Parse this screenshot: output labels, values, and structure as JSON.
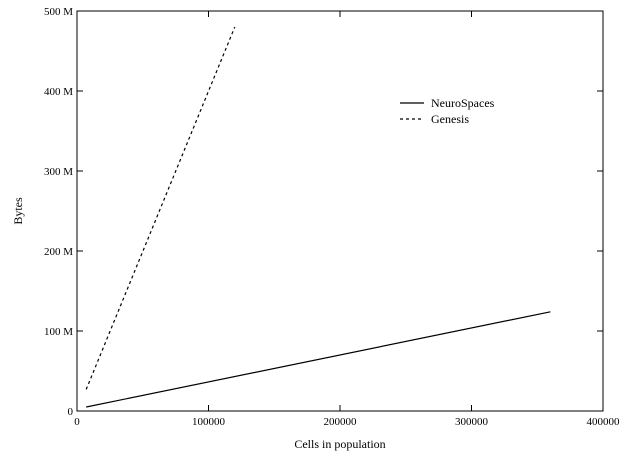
{
  "chart_data": {
    "type": "line",
    "xlabel": "Cells in population",
    "ylabel": "Bytes",
    "xlim": [
      0,
      400000
    ],
    "ylim": [
      0,
      500
    ],
    "x_ticks": [
      0,
      100000,
      200000,
      300000,
      400000
    ],
    "x_tick_labels": [
      "0",
      "100000",
      "200000",
      "300000",
      "400000"
    ],
    "y_ticks": [
      0,
      100,
      200,
      300,
      400,
      500
    ],
    "y_tick_labels": [
      "0",
      "100 M",
      "200 M",
      "300 M",
      "400 M",
      "500 M"
    ],
    "grid": false,
    "legend_position": "top-right",
    "series": [
      {
        "name": "NeuroSpaces",
        "line_style": "solid",
        "color": "#000000",
        "x": [
          7000,
          360000
        ],
        "y": [
          5,
          124
        ]
      },
      {
        "name": "Genesis",
        "line_style": "dashed",
        "color": "#000000",
        "x": [
          7000,
          120000
        ],
        "y": [
          27,
          480
        ]
      }
    ]
  }
}
